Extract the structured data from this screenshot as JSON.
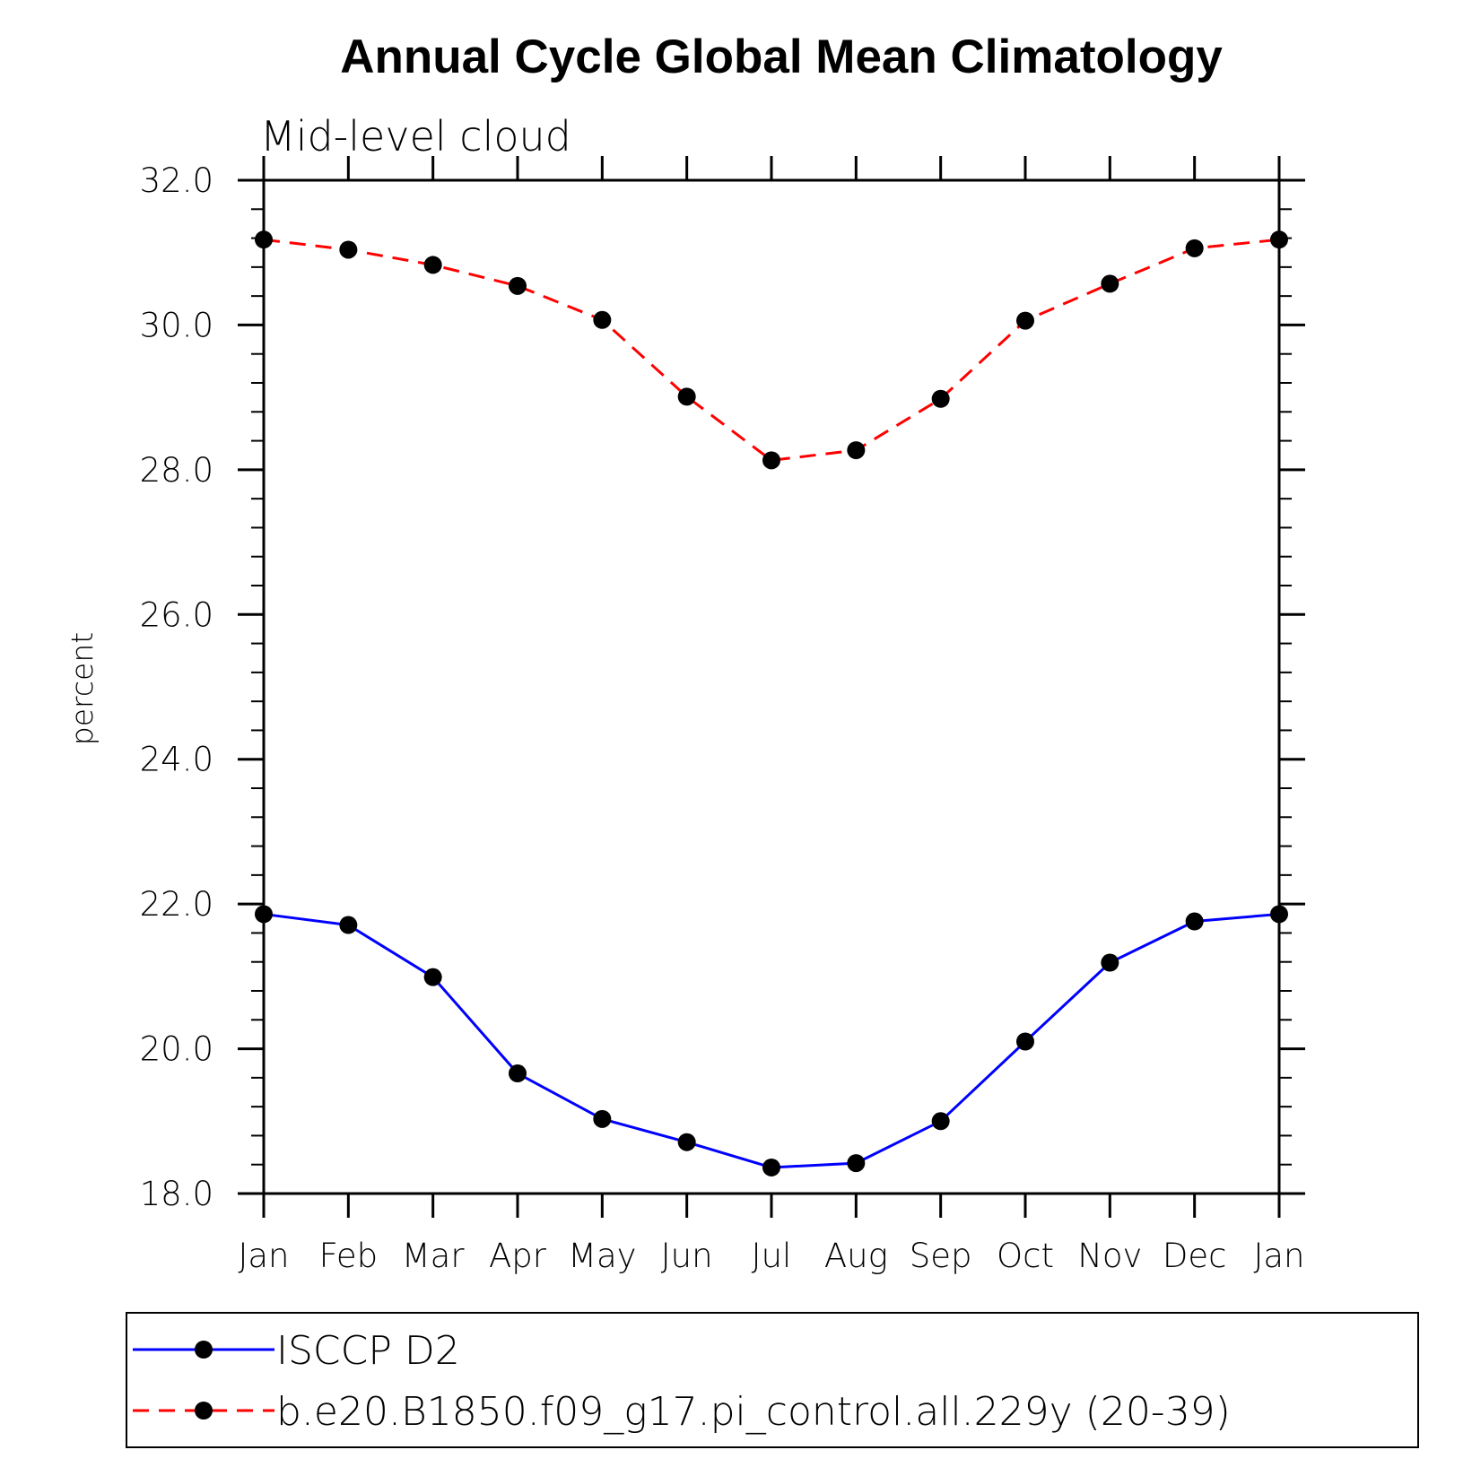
{
  "chart_data": {
    "type": "line",
    "title": "Annual Cycle Global Mean Climatology",
    "subtitle": "Mid-level cloud",
    "xlabel": "",
    "ylabel": "percent",
    "categories": [
      "Jan",
      "Feb",
      "Mar",
      "Apr",
      "May",
      "Jun",
      "Jul",
      "Aug",
      "Sep",
      "Oct",
      "Nov",
      "Dec",
      "Jan"
    ],
    "ylim": [
      18.0,
      32.0
    ],
    "yticks": [
      "18.0",
      "20.0",
      "22.0",
      "24.0",
      "26.0",
      "28.0",
      "30.0",
      "32.0"
    ],
    "series": [
      {
        "name": "ISCCP D2",
        "color": "#0000ff",
        "line_style": "solid",
        "marker": "filled-circle",
        "values": [
          21.86,
          21.71,
          20.99,
          19.66,
          19.03,
          18.71,
          18.36,
          18.42,
          19.0,
          20.1,
          21.19,
          21.76,
          21.86
        ]
      },
      {
        "name": "b.e20.B1850.f09_g17.pi_control.all.229y (20-39)",
        "color": "#ff0000",
        "line_style": "dashed",
        "marker": "filled-circle",
        "values": [
          31.18,
          31.04,
          30.83,
          30.54,
          30.07,
          29.01,
          28.13,
          28.27,
          28.98,
          30.06,
          30.57,
          31.06,
          31.18
        ]
      }
    ],
    "grid": false,
    "legend_position": "bottom"
  }
}
